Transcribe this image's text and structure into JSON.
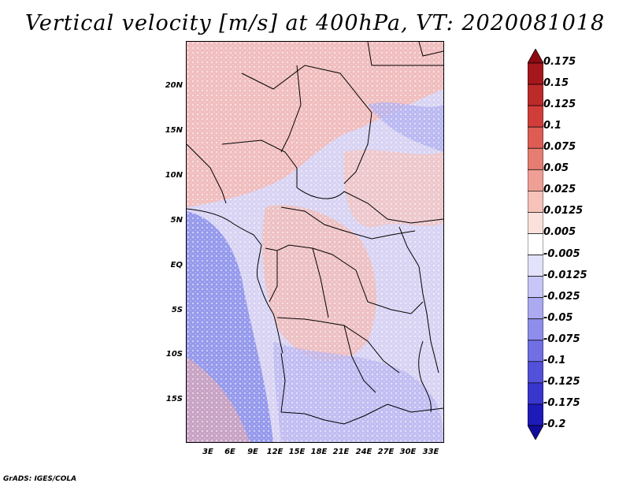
{
  "title": "Vertical velocity [m/s] at 400hPa, VT: 2020081018",
  "map": {
    "lat_labels": [
      "20N",
      "15N",
      "10N",
      "5N",
      "EQ",
      "5S",
      "10S",
      "15S"
    ],
    "lon_labels": [
      "3E",
      "6E",
      "9E",
      "12E",
      "15E",
      "18E",
      "21E",
      "24E",
      "27E",
      "30E",
      "33E"
    ],
    "field_description": "vertical velocity shading over Central Africa",
    "dominant_colors": {
      "ascent": "#f4b9b4",
      "descent": "#a3a9f2",
      "ocean_descent": "#8a8eea"
    }
  },
  "colorbar": {
    "levels": [
      "0.175",
      "0.15",
      "0.125",
      "0.1",
      "0.075",
      "0.05",
      "0.025",
      "0.0125",
      "0.005",
      "-0.005",
      "-0.0125",
      "-0.025",
      "-0.05",
      "-0.075",
      "-0.1",
      "-0.125",
      "-0.175",
      "-0.2"
    ],
    "colors": [
      "#8c0a12",
      "#a5171c",
      "#bc2a2a",
      "#d13e3a",
      "#dd5d54",
      "#e67d72",
      "#ef9f95",
      "#f6c2b9",
      "#fbe1dc",
      "#ffffff",
      "#e3e2fb",
      "#c7c6f6",
      "#aba9f0",
      "#8f8deb",
      "#716fe3",
      "#5351d9",
      "#3936cd",
      "#1e1ab8",
      "#120c9d"
    ]
  },
  "credit": "GrADS: IGES/COLA"
}
